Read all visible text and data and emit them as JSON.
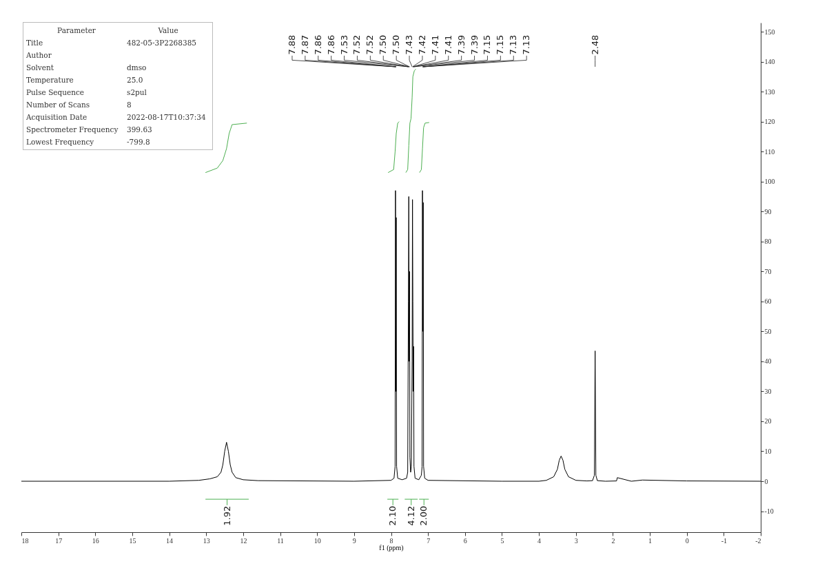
{
  "chart_data": {
    "type": "line",
    "xlabel": "f1 (ppm)",
    "xlim": [
      18,
      -2
    ],
    "xticks": [
      18,
      17,
      16,
      15,
      14,
      13,
      12,
      11,
      10,
      9,
      8,
      7,
      6,
      5,
      4,
      3,
      2,
      1,
      0,
      -1,
      -2
    ],
    "ylim": [
      -17,
      153
    ],
    "yticks": [
      -10,
      0,
      10,
      20,
      30,
      40,
      50,
      60,
      70,
      80,
      90,
      100,
      110,
      120,
      130,
      140,
      150
    ],
    "series": [
      {
        "color": "#000000",
        "x": [
          18,
          14,
          13.2,
          12.9,
          12.7,
          12.6,
          12.55,
          12.5,
          12.45,
          12.4,
          12.35,
          12.3,
          12.2,
          12,
          11.6,
          9,
          8,
          7.92,
          7.89,
          7.88,
          7.87,
          7.86,
          7.85,
          7.82,
          7.7,
          7.58,
          7.55,
          7.53,
          7.52,
          7.51,
          7.5,
          7.49,
          7.47,
          7.45,
          7.43,
          7.42,
          7.41,
          7.4,
          7.39,
          7.38,
          7.35,
          7.25,
          7.18,
          7.16,
          7.15,
          7.14,
          7.13,
          7.12,
          7.09,
          7,
          5,
          4,
          3.8,
          3.6,
          3.5,
          3.45,
          3.4,
          3.35,
          3.3,
          3.2,
          3,
          2.7,
          2.55,
          2.5,
          2.48,
          2.46,
          2.42,
          2.2,
          1.9,
          1.88,
          1.5,
          1.2,
          0,
          -2
        ],
        "values": [
          0,
          0,
          0.3,
          0.8,
          1.5,
          3,
          5.5,
          10,
          13,
          10,
          5.5,
          3,
          1.2,
          0.5,
          0.2,
          0,
          0.3,
          1,
          5,
          97,
          30,
          88,
          5,
          1,
          0.5,
          1,
          3,
          60,
          95,
          40,
          70,
          8,
          3,
          5,
          40,
          94,
          60,
          30,
          45,
          5,
          1,
          0.5,
          2,
          5,
          97,
          50,
          93,
          5,
          1,
          0.3,
          0,
          0,
          0.3,
          1.5,
          4,
          7,
          8.4,
          7,
          4,
          1.5,
          0.3,
          0.1,
          0.2,
          2,
          43.5,
          2,
          0.2,
          0,
          0.1,
          1.2,
          0,
          0.4,
          0.1,
          0
        ]
      },
      {
        "color": "#4caf50",
        "x": [
          13.02,
          12.7,
          12.55,
          12.45,
          12.38,
          12.3,
          11.9
        ],
        "values": [
          103,
          104.5,
          107,
          111,
          116,
          119,
          119.5
        ]
      },
      {
        "color": "#4caf50",
        "x": [
          8.08,
          7.93,
          7.89,
          7.86,
          7.82,
          7.78
        ],
        "values": [
          103,
          104,
          110,
          116,
          119.5,
          120
        ]
      },
      {
        "color": "#4caf50",
        "x": [
          7.6,
          7.55,
          7.52,
          7.49,
          7.46,
          7.43,
          7.41,
          7.37,
          7.33
        ],
        "values": [
          103,
          104,
          112,
          119.5,
          121,
          128,
          135,
          137,
          137.5
        ]
      },
      {
        "color": "#4caf50",
        "x": [
          7.23,
          7.18,
          7.15,
          7.12,
          7.08,
          6.97
        ],
        "values": [
          103,
          104,
          111,
          118,
          119.5,
          119.7
        ]
      },
      {
        "color": "#4caf50",
        "x": [
          13.02,
          11.85
        ],
        "values": [
          -6,
          -6
        ]
      },
      {
        "color": "#4caf50",
        "x": [
          8.1,
          7.8
        ],
        "values": [
          -6,
          -6
        ]
      },
      {
        "color": "#4caf50",
        "x": [
          7.63,
          7.28
        ],
        "values": [
          -6,
          -6
        ]
      },
      {
        "color": "#4caf50",
        "x": [
          7.24,
          6.98
        ],
        "values": [
          -6,
          -6
        ]
      }
    ],
    "annotations": [
      "Parameter\tValue",
      "Title\t482-05-3P2268385",
      "Author\t",
      "Solvent\tdmso",
      "Temperature\t25.0",
      "Pulse Sequence\ts2pul",
      "Number of Scans\t8",
      "Acquisition Date\t2022-08-17T10:37:34",
      "Spectrometer Frequency\t399.63",
      "Lowest Frequency\t-799.8",
      {
        "text": "7.88",
        "x": 7.88
      },
      {
        "text": "7.87",
        "x": 7.87
      },
      {
        "text": "7.86",
        "x": 7.86
      },
      {
        "text": "7.86",
        "x": 7.86
      },
      {
        "text": "7.53",
        "x": 7.53
      },
      {
        "text": "7.52",
        "x": 7.52
      },
      {
        "text": "7.52",
        "x": 7.52
      },
      {
        "text": "7.50",
        "x": 7.5
      },
      {
        "text": "7.50",
        "x": 7.5
      },
      {
        "text": "7.43",
        "x": 7.43
      },
      {
        "text": "7.42",
        "x": 7.42
      },
      {
        "text": "7.41",
        "x": 7.41
      },
      {
        "text": "7.41",
        "x": 7.41
      },
      {
        "text": "7.39",
        "x": 7.39
      },
      {
        "text": "7.39",
        "x": 7.39
      },
      {
        "text": "7.15",
        "x": 7.15
      },
      {
        "text": "7.15",
        "x": 7.15
      },
      {
        "text": "7.13",
        "x": 7.13
      },
      {
        "text": "7.13",
        "x": 7.13
      },
      {
        "text": "2.48",
        "x": 2.48
      },
      {
        "text": "1.92",
        "x": 12.435,
        "y": -6
      },
      {
        "text": "2.10",
        "x": 7.95,
        "y": -6
      },
      {
        "text": "4.12",
        "x": 7.455,
        "y": -6
      },
      {
        "text": "2.00",
        "x": 7.11,
        "y": -6
      }
    ]
  }
}
